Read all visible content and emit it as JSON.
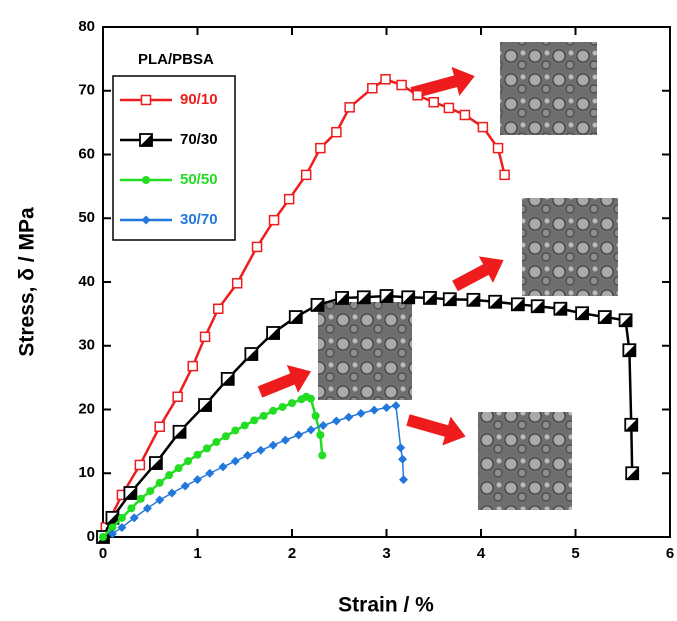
{
  "chart_data": {
    "type": "line",
    "xlabel": "Strain / %",
    "ylabel": "Stress, δ / MPa",
    "legend_title": "PLA/PBSA",
    "xlim": [
      0,
      6
    ],
    "xticks": [
      0,
      1,
      2,
      3,
      4,
      5,
      6
    ],
    "ylim": [
      0,
      80
    ],
    "yticks": [
      0,
      10,
      20,
      30,
      40,
      50,
      60,
      70,
      80
    ],
    "series": [
      {
        "name": "90/10",
        "color": "#ee1c1c",
        "marker": "square-open",
        "x": [
          0,
          0.03,
          0.2,
          0.39,
          0.6,
          0.79,
          0.95,
          1.08,
          1.22,
          1.42,
          1.63,
          1.81,
          1.97,
          2.15,
          2.3,
          2.47,
          2.61,
          2.85,
          2.99,
          3.16,
          3.33,
          3.5,
          3.66,
          3.83,
          4.02,
          4.18,
          4.25
        ],
        "values": [
          0,
          1.5,
          6.6,
          11.3,
          17.3,
          22,
          26.8,
          31.4,
          35.8,
          39.8,
          45.5,
          49.7,
          53,
          56.8,
          61,
          63.5,
          67.4,
          70.4,
          71.8,
          70.9,
          69.3,
          68.2,
          67.3,
          66.2,
          64.3,
          61,
          56.8
        ]
      },
      {
        "name": "70/30",
        "color": "#000000",
        "marker": "square-half",
        "x": [
          0,
          0.1,
          0.29,
          0.56,
          0.81,
          1.08,
          1.32,
          1.57,
          1.8,
          2.04,
          2.27,
          2.53,
          2.76,
          3.0,
          3.23,
          3.46,
          3.67,
          3.92,
          4.15,
          4.39,
          4.6,
          4.84,
          5.07,
          5.31,
          5.53,
          5.57,
          5.59,
          5.6
        ],
        "values": [
          0,
          3,
          6.9,
          11.6,
          16.5,
          20.7,
          24.8,
          28.7,
          32,
          34.5,
          36.4,
          37.5,
          37.6,
          37.8,
          37.6,
          37.5,
          37.3,
          37.2,
          36.9,
          36.5,
          36.2,
          35.8,
          35.1,
          34.5,
          34,
          29.3,
          17.6,
          10
        ]
      },
      {
        "name": "50/50",
        "color": "#22dd22",
        "marker": "circle",
        "x": [
          0,
          0.1,
          0.2,
          0.3,
          0.4,
          0.5,
          0.6,
          0.7,
          0.8,
          0.9,
          1.0,
          1.1,
          1.2,
          1.3,
          1.4,
          1.5,
          1.6,
          1.7,
          1.8,
          1.9,
          2.0,
          2.1,
          2.15,
          2.2,
          2.25,
          2.3,
          2.32
        ],
        "values": [
          0,
          1.5,
          3,
          4.5,
          6,
          7.2,
          8.5,
          9.7,
          10.8,
          11.9,
          12.9,
          13.9,
          14.9,
          15.8,
          16.7,
          17.5,
          18.3,
          19,
          19.8,
          20.4,
          21,
          21.6,
          22,
          21.7,
          19,
          16,
          12.8
        ]
      },
      {
        "name": "30/70",
        "color": "#2277dd",
        "marker": "diamond",
        "x": [
          0.1,
          0.2,
          0.33,
          0.47,
          0.6,
          0.73,
          0.87,
          1.0,
          1.13,
          1.27,
          1.4,
          1.53,
          1.67,
          1.8,
          1.93,
          2.07,
          2.2,
          2.33,
          2.47,
          2.6,
          2.73,
          2.87,
          3.0,
          3.1,
          3.15,
          3.17,
          3.18
        ],
        "values": [
          0.5,
          1.5,
          3,
          4.5,
          5.8,
          6.9,
          8,
          9,
          10,
          11,
          11.9,
          12.8,
          13.6,
          14.4,
          15.2,
          16,
          16.8,
          17.5,
          18.2,
          18.8,
          19.4,
          19.9,
          20.3,
          20.6,
          14,
          12.2,
          9
        ]
      }
    ]
  }
}
